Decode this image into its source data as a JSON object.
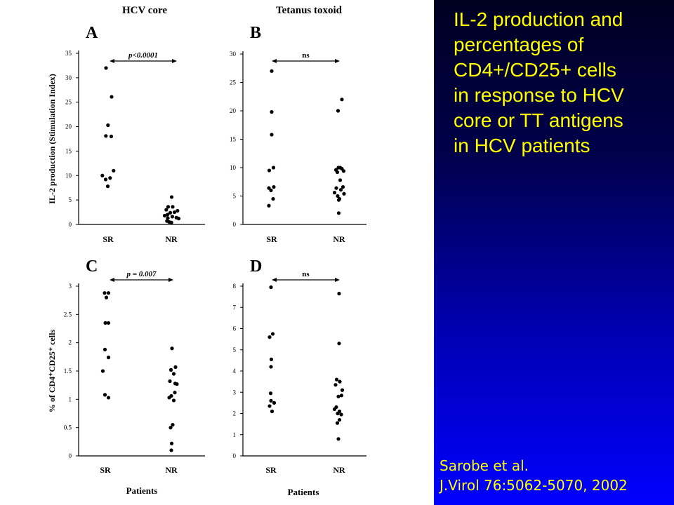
{
  "slide": {
    "title_lines": [
      "IL-2 production and",
      "percentages of",
      "CD4+/CD25+ cells",
      "in response to HCV",
      "core or TT antigens",
      "in HCV patients"
    ],
    "citation_lines": [
      "Sarobe et al.",
      "J.Virol 76:5062-5070, 2002"
    ],
    "colors": {
      "title_text": "#ffff00",
      "panel_gradient_top": "#000022",
      "panel_gradient_bottom": "#0000ff",
      "points": "#000000"
    }
  },
  "figure": {
    "column_headers": [
      "HCV core",
      "Tetanus toxoid"
    ],
    "x_axis_title": "Patients"
  },
  "chart_data": [
    {
      "panel_letter": "A",
      "type": "scatter",
      "ylabel": "IL-2 production (Stimulation Index)",
      "ylim": [
        0,
        35
      ],
      "yticks": [
        0,
        5,
        10,
        15,
        20,
        25,
        30,
        35
      ],
      "categories": [
        "SR",
        "NR"
      ],
      "significance": "p<0.0001",
      "points": [
        {
          "group": "SR",
          "y": 32,
          "dx": -0.3
        },
        {
          "group": "SR",
          "y": 26.1,
          "dx": 0.5
        },
        {
          "group": "SR",
          "y": 20.3,
          "dx": -0.02
        },
        {
          "group": "SR",
          "y": 18.1,
          "dx": -0.32
        },
        {
          "group": "SR",
          "y": 18.0,
          "dx": 0.45
        },
        {
          "group": "SR",
          "y": 11.0,
          "dx": 0.78
        },
        {
          "group": "SR",
          "y": 10.0,
          "dx": -0.82
        },
        {
          "group": "SR",
          "y": 9.5,
          "dx": 0.28
        },
        {
          "group": "SR",
          "y": 9.2,
          "dx": -0.35
        },
        {
          "group": "SR",
          "y": 7.8,
          "dx": -0.05
        },
        {
          "group": "NR",
          "y": 5.6,
          "dx": 0.05
        },
        {
          "group": "NR",
          "y": 3.6,
          "dx": -0.45
        },
        {
          "group": "NR",
          "y": 3.6,
          "dx": 0.2
        },
        {
          "group": "NR",
          "y": 3.0,
          "dx": -0.72
        },
        {
          "group": "NR",
          "y": 2.8,
          "dx": 0.88
        },
        {
          "group": "NR",
          "y": 2.5,
          "dx": 0.45
        },
        {
          "group": "NR",
          "y": 2.4,
          "dx": -0.15
        },
        {
          "group": "NR",
          "y": 2.0,
          "dx": -0.55
        },
        {
          "group": "NR",
          "y": 1.8,
          "dx": -0.95
        },
        {
          "group": "NR",
          "y": 1.6,
          "dx": 0.15
        },
        {
          "group": "NR",
          "y": 1.4,
          "dx": 0.72
        },
        {
          "group": "NR",
          "y": 1.3,
          "dx": -0.5
        },
        {
          "group": "NR",
          "y": 1.2,
          "dx": 1.05
        },
        {
          "group": "NR",
          "y": 0.7,
          "dx": -0.62
        },
        {
          "group": "NR",
          "y": 0.5,
          "dx": -0.3
        },
        {
          "group": "NR",
          "y": 0.4,
          "dx": 0.02
        }
      ]
    },
    {
      "panel_letter": "B",
      "type": "scatter",
      "ylabel": "",
      "ylim": [
        0,
        30
      ],
      "yticks": [
        0,
        5,
        10,
        15,
        20,
        25,
        30
      ],
      "categories": [
        "SR",
        "NR"
      ],
      "significance": "ns",
      "points": [
        {
          "group": "SR",
          "y": 27,
          "dx": 0.0
        },
        {
          "group": "SR",
          "y": 19.8,
          "dx": 0.0
        },
        {
          "group": "SR",
          "y": 15.8,
          "dx": 0.0
        },
        {
          "group": "SR",
          "y": 10.0,
          "dx": 0.25
        },
        {
          "group": "SR",
          "y": 9.5,
          "dx": -0.35
        },
        {
          "group": "SR",
          "y": 6.6,
          "dx": 0.3
        },
        {
          "group": "SR",
          "y": 6.4,
          "dx": -0.4
        },
        {
          "group": "SR",
          "y": 6.0,
          "dx": -0.1
        },
        {
          "group": "SR",
          "y": 4.5,
          "dx": 0.2
        },
        {
          "group": "SR",
          "y": 3.3,
          "dx": -0.4
        },
        {
          "group": "NR",
          "y": 22,
          "dx": 0.4
        },
        {
          "group": "NR",
          "y": 20,
          "dx": -0.15
        },
        {
          "group": "NR",
          "y": 10.0,
          "dx": -0.1
        },
        {
          "group": "NR",
          "y": 10.0,
          "dx": 0.15
        },
        {
          "group": "NR",
          "y": 9.8,
          "dx": 0.4
        },
        {
          "group": "NR",
          "y": 9.6,
          "dx": -0.45
        },
        {
          "group": "NR",
          "y": 9.4,
          "dx": 0.65
        },
        {
          "group": "NR",
          "y": 9.2,
          "dx": -0.25
        },
        {
          "group": "NR",
          "y": 7.8,
          "dx": 0.15
        },
        {
          "group": "NR",
          "y": 6.6,
          "dx": 0.55
        },
        {
          "group": "NR",
          "y": 6.4,
          "dx": -0.4
        },
        {
          "group": "NR",
          "y": 6.1,
          "dx": 0.25
        },
        {
          "group": "NR",
          "y": 5.6,
          "dx": -0.65
        },
        {
          "group": "NR",
          "y": 5.4,
          "dx": 0.7
        },
        {
          "group": "NR",
          "y": 5.0,
          "dx": -0.2
        },
        {
          "group": "NR",
          "y": 4.5,
          "dx": 0.05
        },
        {
          "group": "NR",
          "y": 4.3,
          "dx": -0.05
        },
        {
          "group": "NR",
          "y": 2.0,
          "dx": -0.05
        }
      ]
    },
    {
      "panel_letter": "C",
      "type": "scatter",
      "ylabel": "% of CD4⁺CD25⁺ cells",
      "ylim": [
        0,
        3
      ],
      "yticks": [
        0,
        0.5,
        1,
        1.5,
        2,
        2.5,
        3
      ],
      "categories": [
        "SR",
        "NR"
      ],
      "significance": "p = 0.007",
      "points": [
        {
          "group": "SR",
          "y": 2.88,
          "dx": -0.1
        },
        {
          "group": "SR",
          "y": 2.88,
          "dx": 0.45
        },
        {
          "group": "SR",
          "y": 2.8,
          "dx": 0.15
        },
        {
          "group": "SR",
          "y": 2.35,
          "dx": 0.0
        },
        {
          "group": "SR",
          "y": 2.35,
          "dx": 0.45
        },
        {
          "group": "SR",
          "y": 1.88,
          "dx": -0.05
        },
        {
          "group": "SR",
          "y": 1.74,
          "dx": 0.45
        },
        {
          "group": "SR",
          "y": 1.5,
          "dx": -0.35
        },
        {
          "group": "SR",
          "y": 1.08,
          "dx": -0.05
        },
        {
          "group": "SR",
          "y": 1.03,
          "dx": 0.45
        },
        {
          "group": "NR",
          "y": 1.9,
          "dx": 0.1
        },
        {
          "group": "NR",
          "y": 1.57,
          "dx": 0.6
        },
        {
          "group": "NR",
          "y": 1.52,
          "dx": -0.05
        },
        {
          "group": "NR",
          "y": 1.45,
          "dx": 0.35
        },
        {
          "group": "NR",
          "y": 1.32,
          "dx": -0.2
        },
        {
          "group": "NR",
          "y": 1.28,
          "dx": 0.55
        },
        {
          "group": "NR",
          "y": 1.27,
          "dx": 0.8
        },
        {
          "group": "NR",
          "y": 1.12,
          "dx": 0.5
        },
        {
          "group": "NR",
          "y": 1.06,
          "dx": 0.0
        },
        {
          "group": "NR",
          "y": 1.03,
          "dx": -0.3
        },
        {
          "group": "NR",
          "y": 0.98,
          "dx": 0.35
        },
        {
          "group": "NR",
          "y": 0.55,
          "dx": 0.2
        },
        {
          "group": "NR",
          "y": 0.5,
          "dx": -0.1
        },
        {
          "group": "NR",
          "y": 0.22,
          "dx": 0.05
        },
        {
          "group": "NR",
          "y": 0.1,
          "dx": 0.0
        }
      ]
    },
    {
      "panel_letter": "D",
      "type": "scatter",
      "ylabel": "",
      "ylim": [
        0,
        8
      ],
      "yticks": [
        0,
        1,
        2,
        3,
        4,
        5,
        6,
        7,
        8
      ],
      "categories": [
        "SR",
        "NR"
      ],
      "significance": "ns",
      "points": [
        {
          "group": "SR",
          "y": 7.95,
          "dx": 0.0
        },
        {
          "group": "SR",
          "y": 5.75,
          "dx": 0.25
        },
        {
          "group": "SR",
          "y": 5.6,
          "dx": -0.2
        },
        {
          "group": "SR",
          "y": 4.55,
          "dx": 0.05
        },
        {
          "group": "SR",
          "y": 4.2,
          "dx": 0.0
        },
        {
          "group": "SR",
          "y": 2.95,
          "dx": -0.05
        },
        {
          "group": "SR",
          "y": 2.6,
          "dx": 0.0
        },
        {
          "group": "SR",
          "y": 2.5,
          "dx": 0.45
        },
        {
          "group": "SR",
          "y": 2.35,
          "dx": -0.2
        },
        {
          "group": "SR",
          "y": 2.1,
          "dx": 0.15
        },
        {
          "group": "NR",
          "y": 7.65,
          "dx": 0.0
        },
        {
          "group": "NR",
          "y": 5.3,
          "dx": 0.0
        },
        {
          "group": "NR",
          "y": 3.6,
          "dx": -0.35
        },
        {
          "group": "NR",
          "y": 3.5,
          "dx": 0.1
        },
        {
          "group": "NR",
          "y": 3.35,
          "dx": -0.5
        },
        {
          "group": "NR",
          "y": 3.1,
          "dx": 0.45
        },
        {
          "group": "NR",
          "y": 2.85,
          "dx": 0.35
        },
        {
          "group": "NR",
          "y": 2.8,
          "dx": -0.1
        },
        {
          "group": "NR",
          "y": 2.3,
          "dx": -0.4
        },
        {
          "group": "NR",
          "y": 2.2,
          "dx": -0.65
        },
        {
          "group": "NR",
          "y": 2.1,
          "dx": 0.05
        },
        {
          "group": "NR",
          "y": 2.0,
          "dx": -0.2
        },
        {
          "group": "NR",
          "y": 1.95,
          "dx": 0.3
        },
        {
          "group": "NR",
          "y": 1.7,
          "dx": 0.05
        },
        {
          "group": "NR",
          "y": 1.55,
          "dx": -0.25
        },
        {
          "group": "NR",
          "y": 0.8,
          "dx": -0.1
        }
      ]
    }
  ]
}
